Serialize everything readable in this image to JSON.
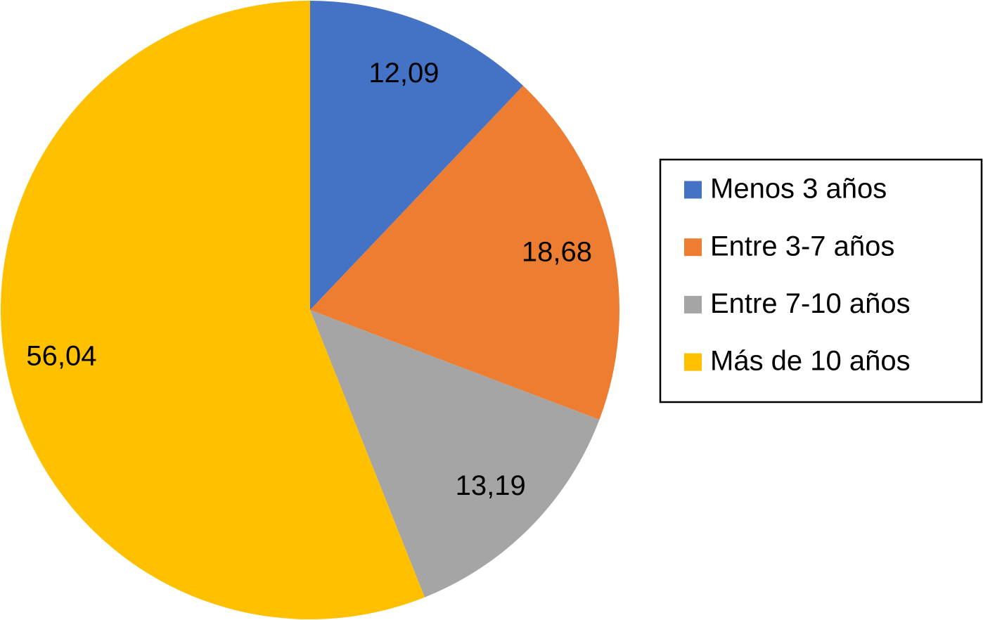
{
  "chart_data": {
    "type": "pie",
    "categories": [
      "Menos 3 años",
      "Entre 3-7 años",
      "Entre 7-10 años",
      "Más de 10 años"
    ],
    "values": [
      12.09,
      18.68,
      13.19,
      56.04
    ],
    "value_labels": [
      "12,09",
      "18,68",
      "13,19",
      "56,04"
    ],
    "colors": [
      "#4472c4",
      "#ed7d31",
      "#a5a5a5",
      "#ffc000"
    ],
    "legend": "right"
  }
}
